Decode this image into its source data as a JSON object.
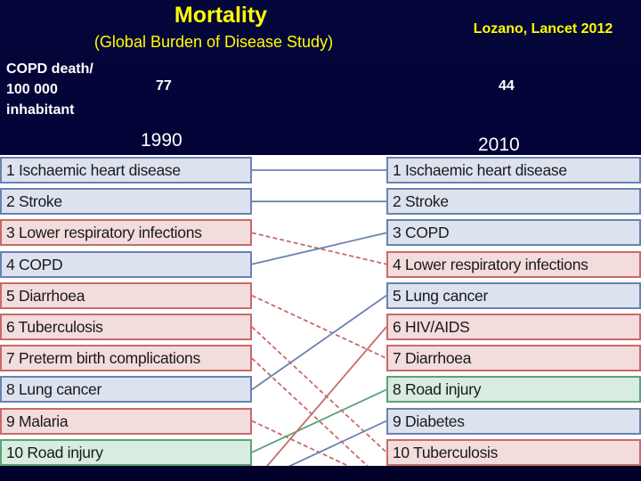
{
  "header": {
    "title": "Mortality",
    "subtitle": "(Global Burden of Disease Study)",
    "reference": "Lozano, Lancet 2012"
  },
  "metric": {
    "label_lines": [
      "COPD death/",
      "100 000",
      "inhabitant"
    ],
    "value_1990": "77",
    "value_2010": "44"
  },
  "years": {
    "left": "1990",
    "right": "2010"
  },
  "colors": {
    "blue": "#6b82b0",
    "red": "#c86a6a",
    "green": "#5ba378",
    "title": "#ffff00"
  },
  "rankings_1990": [
    {
      "label": "1 Ischaemic heart disease",
      "color": "blue"
    },
    {
      "label": "2 Stroke",
      "color": "blue"
    },
    {
      "label": "3 Lower respiratory infections",
      "color": "red"
    },
    {
      "label": "4 COPD",
      "color": "blue"
    },
    {
      "label": "5 Diarrhoea",
      "color": "red"
    },
    {
      "label": "6 Tuberculosis",
      "color": "red"
    },
    {
      "label": "7 Preterm birth complications",
      "color": "red"
    },
    {
      "label": "8 Lung cancer",
      "color": "blue"
    },
    {
      "label": "9 Malaria",
      "color": "red"
    },
    {
      "label": "10 Road injury",
      "color": "green"
    }
  ],
  "rankings_2010": [
    {
      "label": "1 Ischaemic heart disease",
      "color": "blue"
    },
    {
      "label": "2 Stroke",
      "color": "blue"
    },
    {
      "label": "3 COPD",
      "color": "blue"
    },
    {
      "label": "4 Lower respiratory infections",
      "color": "red"
    },
    {
      "label": "5 Lung cancer",
      "color": "blue"
    },
    {
      "label": "6 HIV/AIDS",
      "color": "red"
    },
    {
      "label": "7 Diarrhoea",
      "color": "red"
    },
    {
      "label": "8 Road injury",
      "color": "green"
    },
    {
      "label": "9 Diabetes",
      "color": "blue"
    },
    {
      "label": "10 Tuberculosis",
      "color": "red"
    }
  ],
  "connections": [
    {
      "from_rank": 1,
      "to_rank": 1,
      "color": "blue",
      "style": "solid"
    },
    {
      "from_rank": 2,
      "to_rank": 2,
      "color": "blue",
      "style": "solid"
    },
    {
      "from_rank": 3,
      "to_rank": 4,
      "color": "red",
      "style": "dashed"
    },
    {
      "from_rank": 4,
      "to_rank": 3,
      "color": "blue",
      "style": "solid"
    },
    {
      "from_rank": 5,
      "to_rank": 7,
      "color": "red",
      "style": "dashed"
    },
    {
      "from_rank": 6,
      "to_rank": 10,
      "color": "red",
      "style": "dashed"
    },
    {
      "from_rank": 7,
      "to_rank": 11,
      "color": "red",
      "style": "dashed"
    },
    {
      "from_rank": 8,
      "to_rank": 5,
      "color": "blue",
      "style": "solid"
    },
    {
      "from_rank": 9,
      "to_rank": 11,
      "color": "red",
      "style": "dashed"
    },
    {
      "from_rank": 10,
      "to_rank": 8,
      "color": "green",
      "style": "solid"
    },
    {
      "from_rank": 11,
      "to_rank": 6,
      "color": "red",
      "style": "solid"
    },
    {
      "from_rank": 11,
      "to_rank": 9,
      "color": "blue",
      "style": "solid"
    }
  ]
}
